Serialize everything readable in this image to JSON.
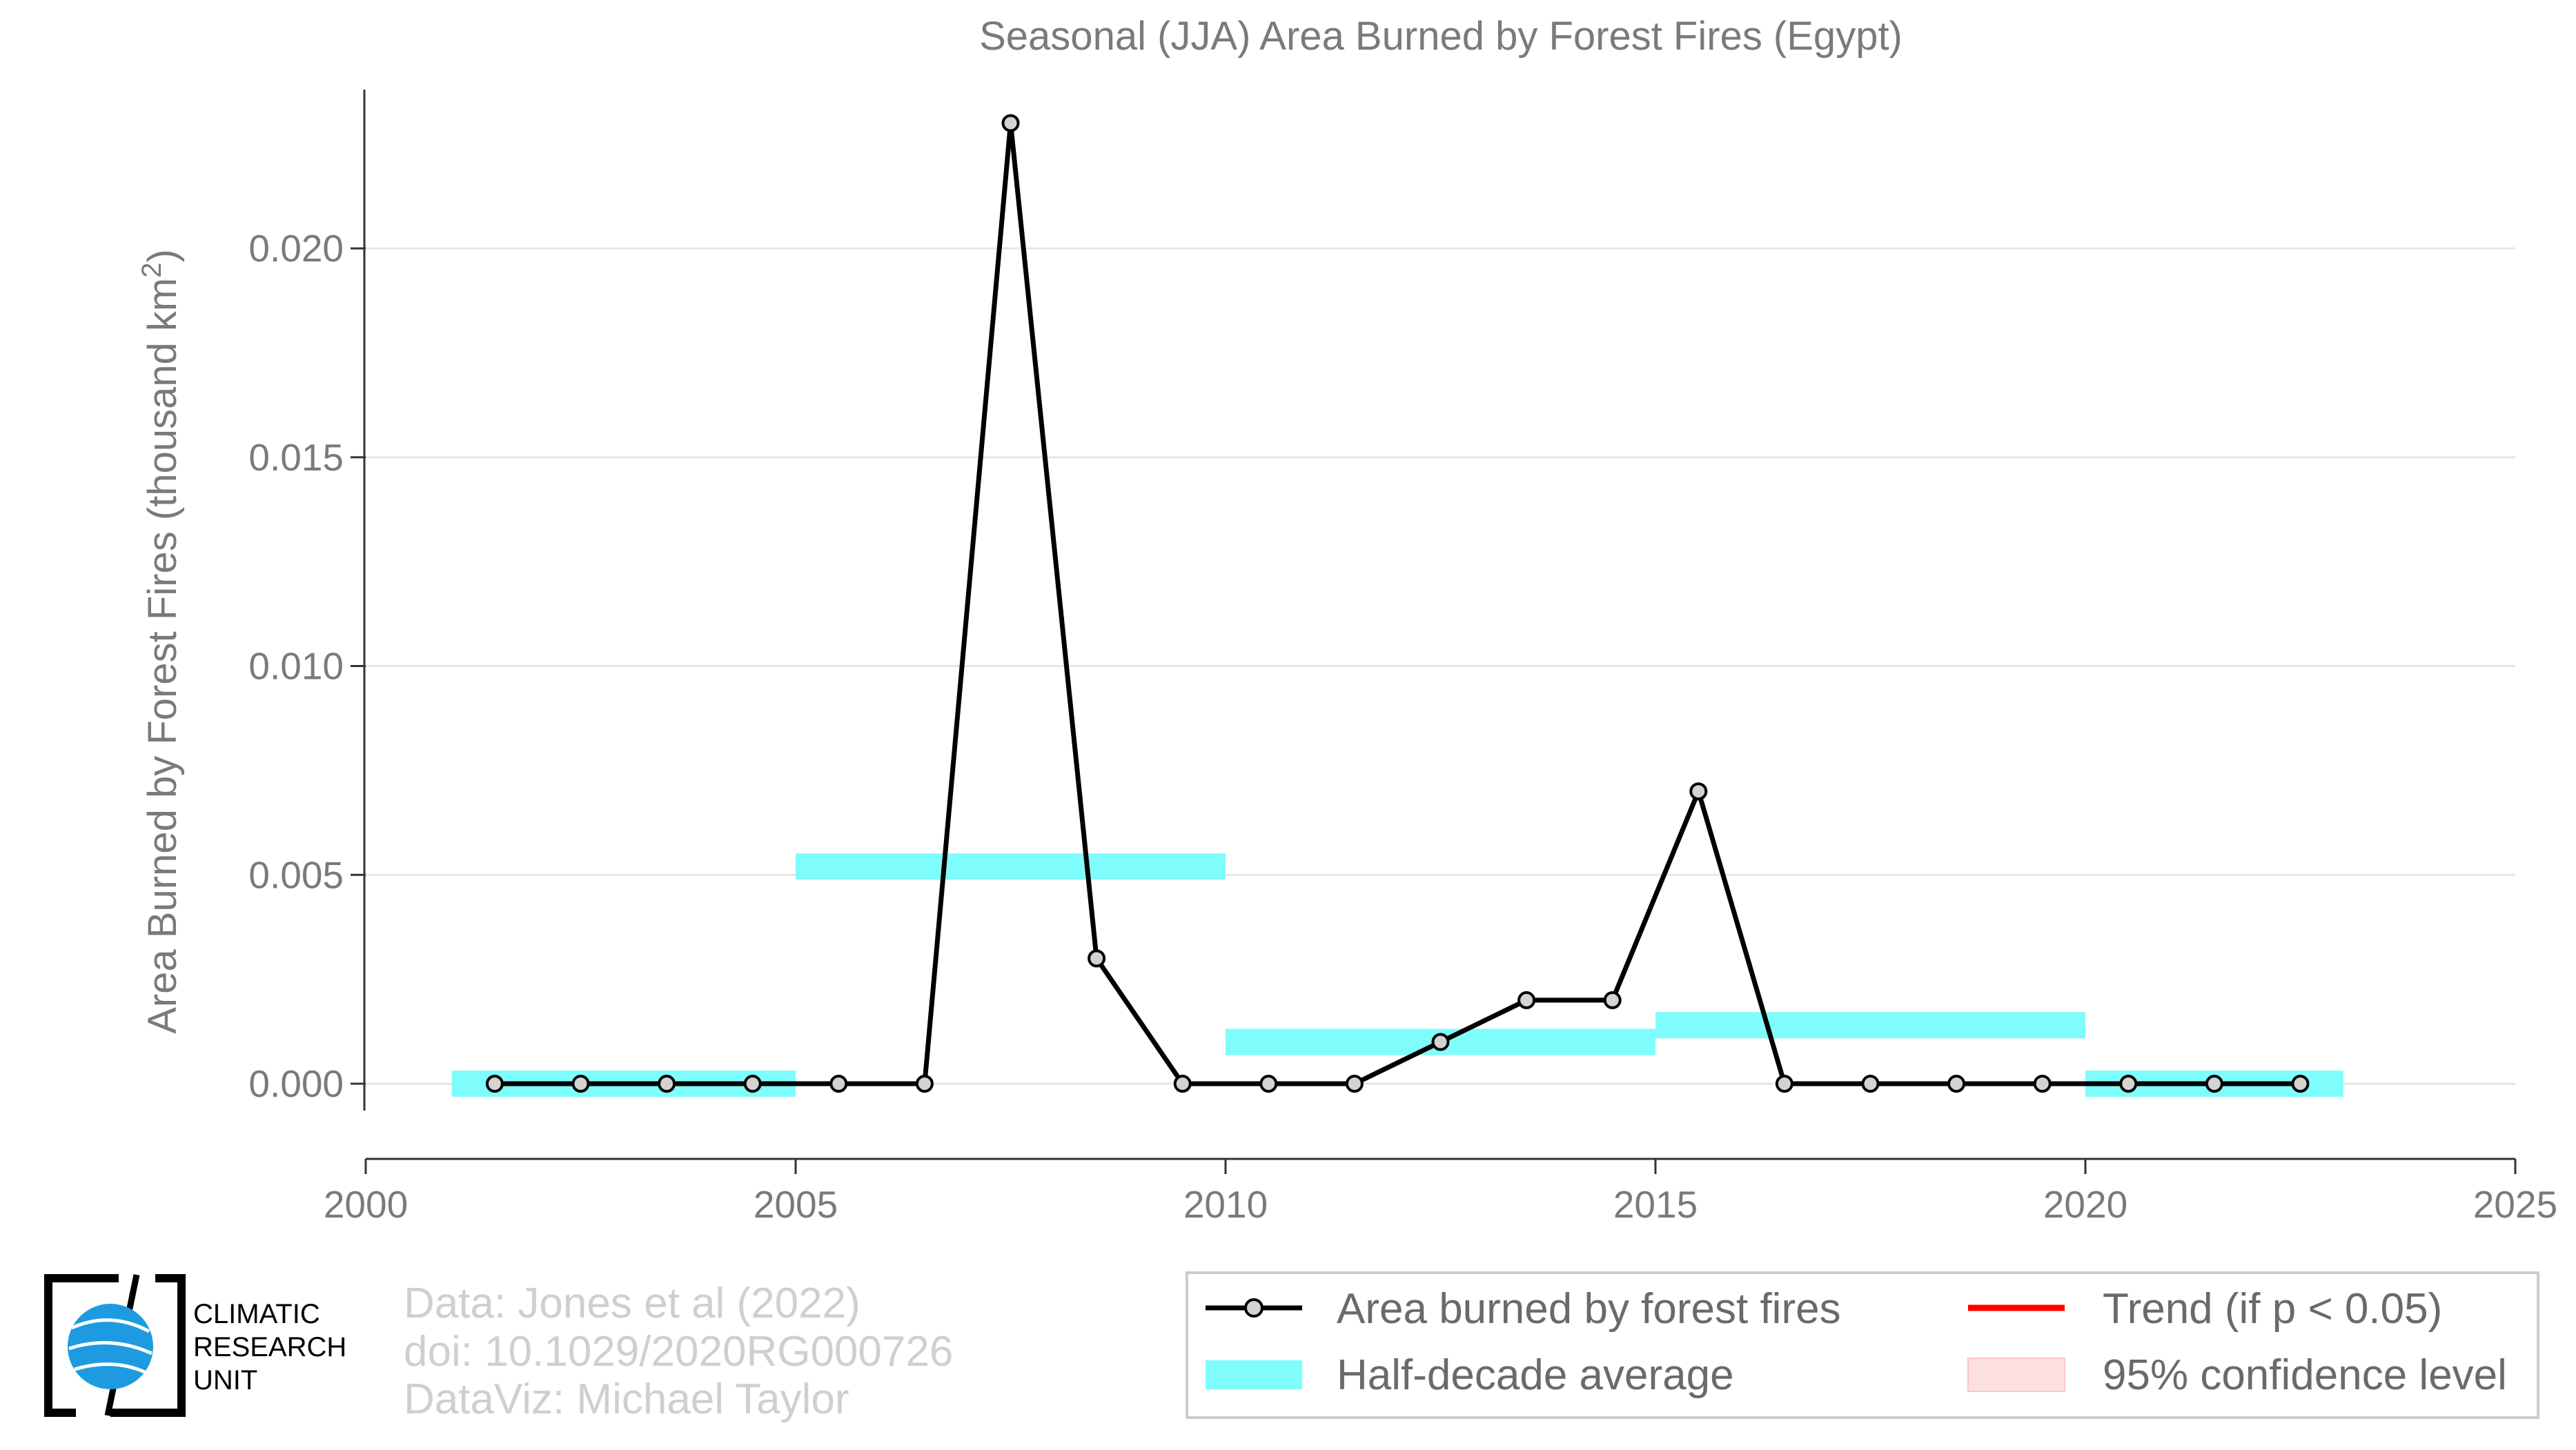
{
  "chart_data": {
    "type": "line",
    "title": "Seasonal (JJA) Area Burned by Forest Fires (Egypt)",
    "xlabel": "",
    "ylabel_main": "Area Burned by Forest Fires (thousand km",
    "ylabel_sup": "2",
    "ylabel_end": ")",
    "xlim": [
      2000,
      2025
    ],
    "ylim": [
      -0.0018,
      0.0238
    ],
    "xticks": [
      2000,
      2005,
      2010,
      2015,
      2020,
      2025
    ],
    "xtick_labels": [
      "2000",
      "2005",
      "2010",
      "2015",
      "2020",
      "2025"
    ],
    "yticks": [
      0,
      0.005,
      0.01,
      0.015,
      0.02
    ],
    "ytick_labels": [
      "0.000",
      "0.005",
      "0.010",
      "0.015",
      "0.020"
    ],
    "grid": "horizontal",
    "series": [
      {
        "name": "Area burned by forest fires",
        "color": "#000000",
        "marker_fill": "#d3d3d3",
        "x": [
          2001.5,
          2002.5,
          2003.5,
          2004.5,
          2005.5,
          2006.5,
          2007.5,
          2008.5,
          2009.5,
          2010.5,
          2011.5,
          2012.5,
          2013.5,
          2014.5,
          2015.5,
          2016.5,
          2017.5,
          2018.5,
          2019.5,
          2020.5,
          2021.5,
          2022.5
        ],
        "y": [
          0,
          0,
          0,
          0,
          0,
          0,
          0.023,
          0.003,
          0,
          0,
          0,
          0.001,
          0.002,
          0.002,
          0.007,
          0,
          0,
          0,
          0,
          0,
          0,
          0
        ]
      }
    ],
    "half_decade_average": {
      "name": "Half-decade average",
      "color": "#7ffcfc",
      "segments": [
        {
          "x0": 2001,
          "x1": 2005,
          "value": 0
        },
        {
          "x0": 2005,
          "x1": 2010,
          "value": 0.0052
        },
        {
          "x0": 2010,
          "x1": 2015,
          "value": 0.001
        },
        {
          "x0": 2015,
          "x1": 2020,
          "value": 0.0014
        },
        {
          "x0": 2020,
          "x1": 2023,
          "value": 0
        }
      ]
    },
    "legend": {
      "placement": "bottom-right",
      "entries": [
        {
          "label": "Area burned by forest fires",
          "kind": "line-marker",
          "color": "#000000"
        },
        {
          "label": "Trend (if p < 0.05)",
          "kind": "line",
          "color": "#ff0000"
        },
        {
          "label": "Half-decade average",
          "kind": "band",
          "color": "#7ffcfc"
        },
        {
          "label": "95% confidence level",
          "kind": "fill",
          "color": "#fde0e0"
        }
      ]
    }
  },
  "credits": {
    "line1": "Data: Jones et al (2022)",
    "line2": "doi: 10.1029/2020RG000726",
    "line3": "DataViz: Michael Taylor"
  },
  "logo": {
    "line1": "CLIMATIC",
    "line2": "RESEARCH",
    "line3": "UNIT"
  }
}
